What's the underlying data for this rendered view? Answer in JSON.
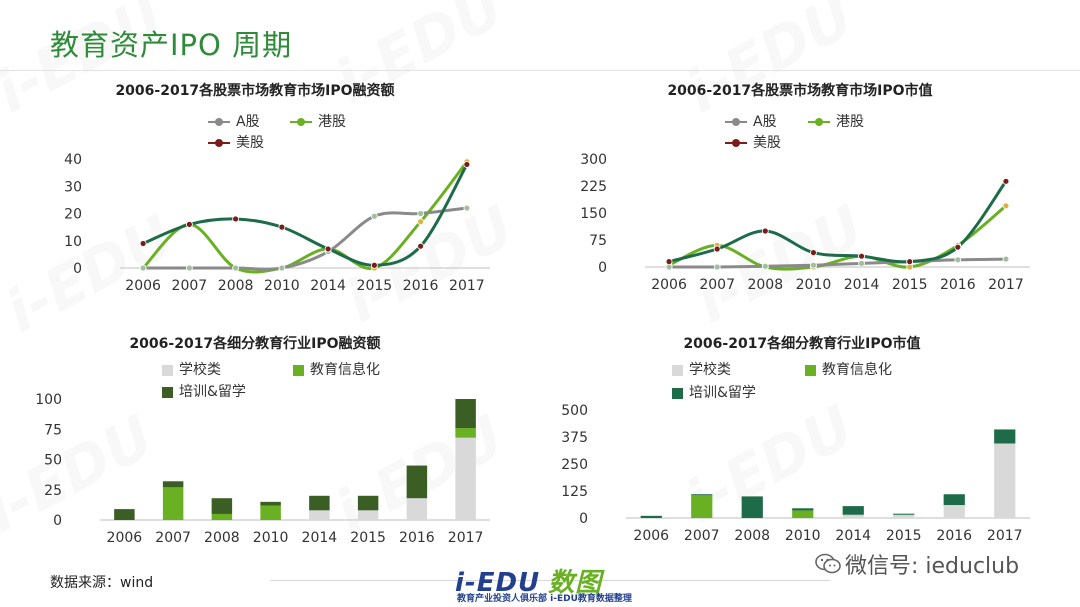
{
  "slide": {
    "title": "教育资产IPO 周期",
    "source": "数据来源：wind",
    "logo_text_left": "i-EDU",
    "logo_text_right": "数图",
    "logo_sub": "教育产业投资人俱乐部  i-EDU教育数据整理",
    "wechat": "微信号: ieduclub",
    "watermark": "i-EDU"
  },
  "colors": {
    "a_share": "#8a8a8a",
    "hk_share": "#6ab023",
    "us_share": "#1e6b4a",
    "school": "#d9d9d9",
    "edu_info": "#6ab023",
    "training": "#3b5e24",
    "training_alt": "#1e6b4a",
    "title_green": "#2e8b3a"
  },
  "chart_data": [
    {
      "type": "line",
      "title": "2006-2017各股票市场教育市场IPO融资额",
      "categories": [
        "2006",
        "2007",
        "2008",
        "2010",
        "2014",
        "2015",
        "2016",
        "2017"
      ],
      "ylim": [
        0,
        40
      ],
      "yticks": [
        "0",
        "10",
        "20",
        "30",
        "40"
      ],
      "series": [
        {
          "name": "A股",
          "values": [
            0,
            0,
            0,
            0,
            6,
            19,
            20,
            22
          ]
        },
        {
          "name": "港股",
          "values": [
            0,
            16,
            0,
            0,
            7,
            0,
            17,
            39
          ]
        },
        {
          "name": "美股",
          "values": [
            9,
            16,
            18,
            15,
            7,
            1,
            8,
            38
          ]
        }
      ]
    },
    {
      "type": "line",
      "title": "2006-2017各股票市场教育市场IPO市值",
      "categories": [
        "2006",
        "2007",
        "2008",
        "2010",
        "2014",
        "2015",
        "2016",
        "2017"
      ],
      "ylim": [
        0,
        300
      ],
      "yticks": [
        "0",
        "75",
        "150",
        "225",
        "300"
      ],
      "series": [
        {
          "name": "A股",
          "values": [
            0,
            0,
            2,
            5,
            10,
            15,
            20,
            22
          ]
        },
        {
          "name": "港股",
          "values": [
            5,
            60,
            0,
            0,
            30,
            0,
            60,
            170
          ]
        },
        {
          "name": "美股",
          "values": [
            15,
            50,
            100,
            40,
            30,
            15,
            55,
            238
          ]
        }
      ]
    },
    {
      "type": "bar",
      "stacked": true,
      "title": "2006-2017各细分教育行业IPO融资额",
      "categories": [
        "2006",
        "2007",
        "2008",
        "2010",
        "2014",
        "2015",
        "2016",
        "2017"
      ],
      "ylim": [
        0,
        100
      ],
      "yticks": [
        "0",
        "25",
        "50",
        "75",
        "100"
      ],
      "series": [
        {
          "name": "学校类",
          "values": [
            0,
            0,
            0,
            0,
            8,
            8,
            18,
            68
          ]
        },
        {
          "name": "教育信息化",
          "values": [
            0,
            27,
            5,
            12,
            0,
            0,
            0,
            8
          ]
        },
        {
          "name": "培训&留学",
          "values": [
            9,
            5,
            13,
            3,
            12,
            12,
            27,
            24
          ]
        }
      ]
    },
    {
      "type": "bar",
      "stacked": true,
      "title": "2006-2017各细分教育行业IPO市值",
      "categories": [
        "2006",
        "2007",
        "2008",
        "2010",
        "2014",
        "2015",
        "2016",
        "2017"
      ],
      "ylim": [
        0,
        500
      ],
      "yticks": [
        "0",
        "125",
        "250",
        "375",
        "500"
      ],
      "series": [
        {
          "name": "学校类",
          "values": [
            0,
            0,
            0,
            0,
            15,
            15,
            60,
            345
          ]
        },
        {
          "name": "教育信息化",
          "values": [
            0,
            105,
            0,
            35,
            0,
            0,
            0,
            0
          ]
        },
        {
          "name": "培训&留学",
          "values": [
            10,
            5,
            100,
            10,
            40,
            5,
            50,
            65
          ]
        }
      ]
    }
  ]
}
